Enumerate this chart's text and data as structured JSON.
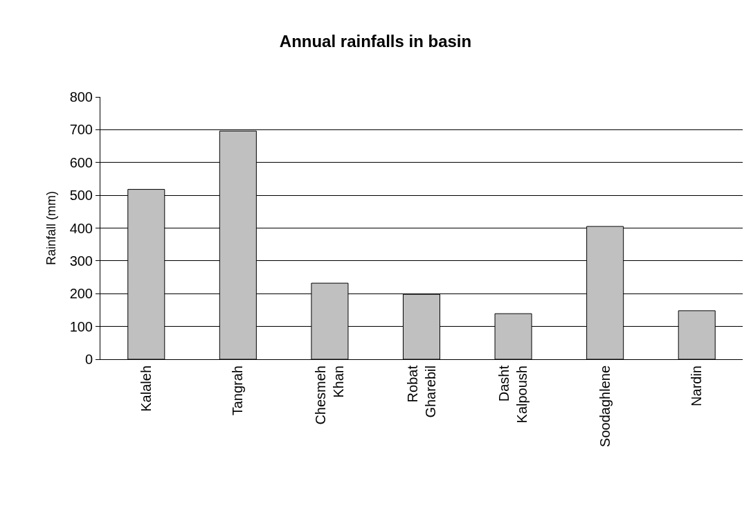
{
  "chart_data": {
    "type": "bar",
    "title": "Annual rainfalls in basin",
    "ylabel": "Rainfall (mm)",
    "categories": [
      "Kalaleh",
      "Tangrah",
      "Chesmeh Khan",
      "Robat Gharebil",
      "Dasht Kalpoush",
      "Soodaghlene",
      "Nardin"
    ],
    "values": [
      518,
      696,
      232,
      198,
      139,
      405,
      148
    ],
    "color": "#c0c0c0",
    "ylim": [
      0,
      800
    ],
    "yticks": [
      0,
      100,
      200,
      300,
      400,
      500,
      600,
      700,
      800
    ],
    "grid": "y"
  }
}
